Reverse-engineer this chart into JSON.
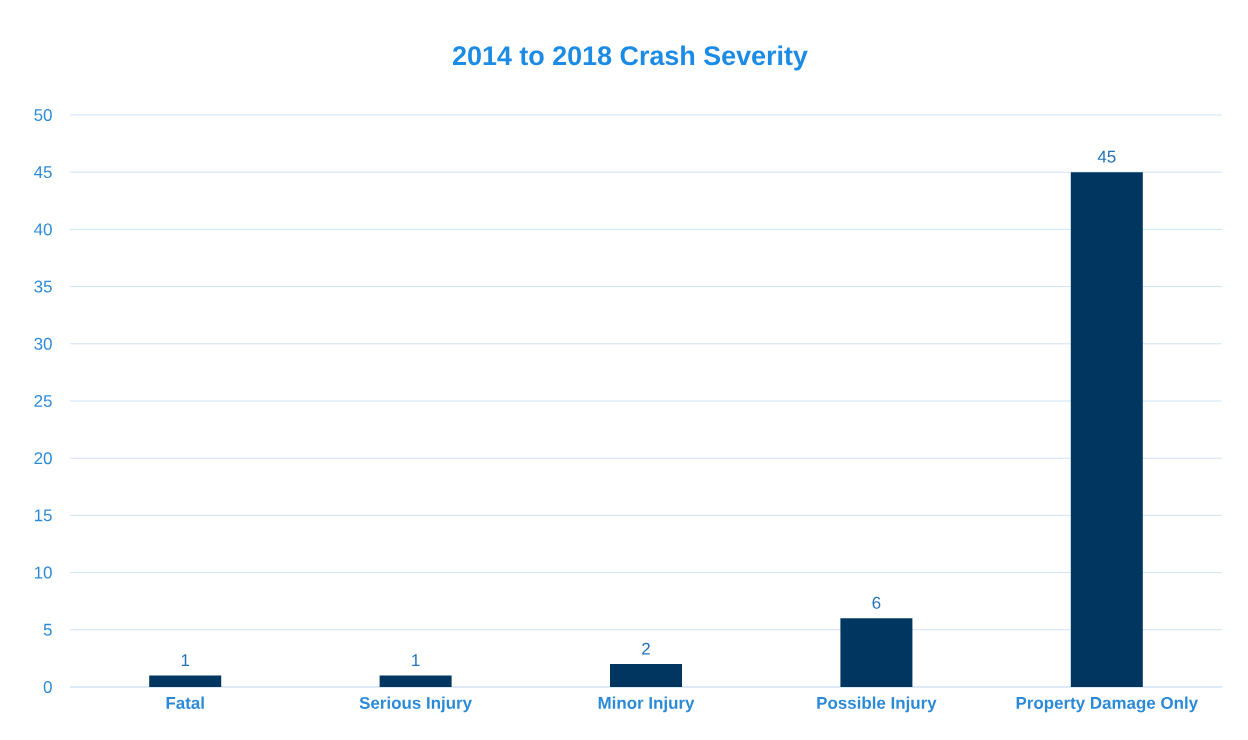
{
  "chart_data": {
    "type": "bar",
    "title": "2014 to 2018 Crash Severity",
    "categories": [
      "Fatal",
      "Serious Injury",
      "Minor Injury",
      "Possible Injury",
      "Property Damage Only"
    ],
    "values": [
      1,
      1,
      2,
      6,
      45
    ],
    "color": "#003660",
    "ylim": [
      0,
      50
    ],
    "yticks": [
      0,
      5,
      10,
      15,
      20,
      25,
      30,
      35,
      40,
      45,
      50
    ],
    "grid": "y",
    "data_labels": true
  }
}
